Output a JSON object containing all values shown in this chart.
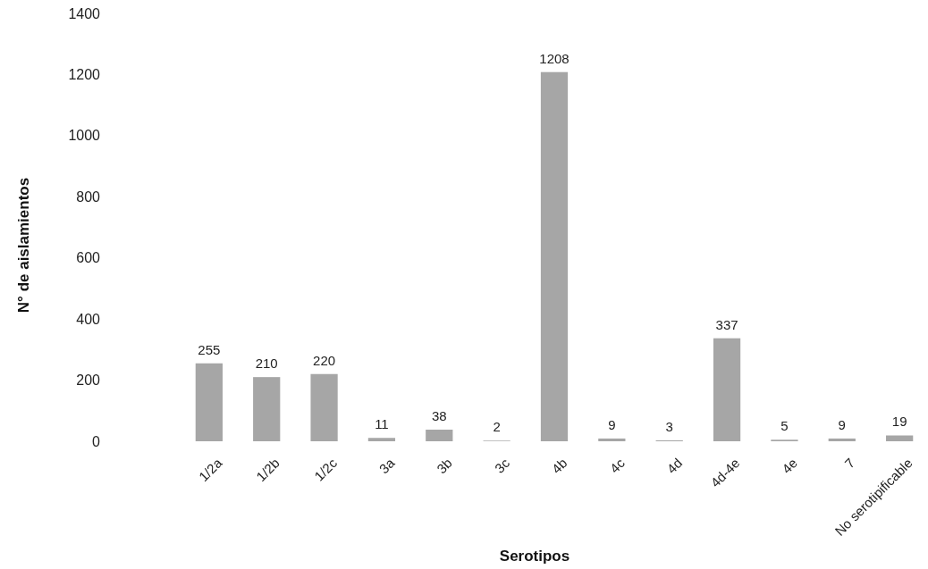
{
  "chart_data": {
    "type": "bar",
    "xlabel": "Serotipos",
    "ylabel": "N° de aislamientos",
    "categories": [
      "1/2a",
      "1/2b",
      "1/2c",
      "3a",
      "3b",
      "3c",
      "4b",
      "4c",
      "4d",
      "4d-4e",
      "4e",
      "7",
      "No serotipificable"
    ],
    "values": [
      255,
      210,
      220,
      11,
      38,
      2,
      1208,
      9,
      3,
      337,
      5,
      9,
      19
    ],
    "color": "#a6a6a6",
    "ylim": [
      0,
      1400
    ],
    "yticks": [
      0,
      200,
      400,
      600,
      800,
      1000,
      1200,
      1400
    ],
    "data_labels": true
  }
}
